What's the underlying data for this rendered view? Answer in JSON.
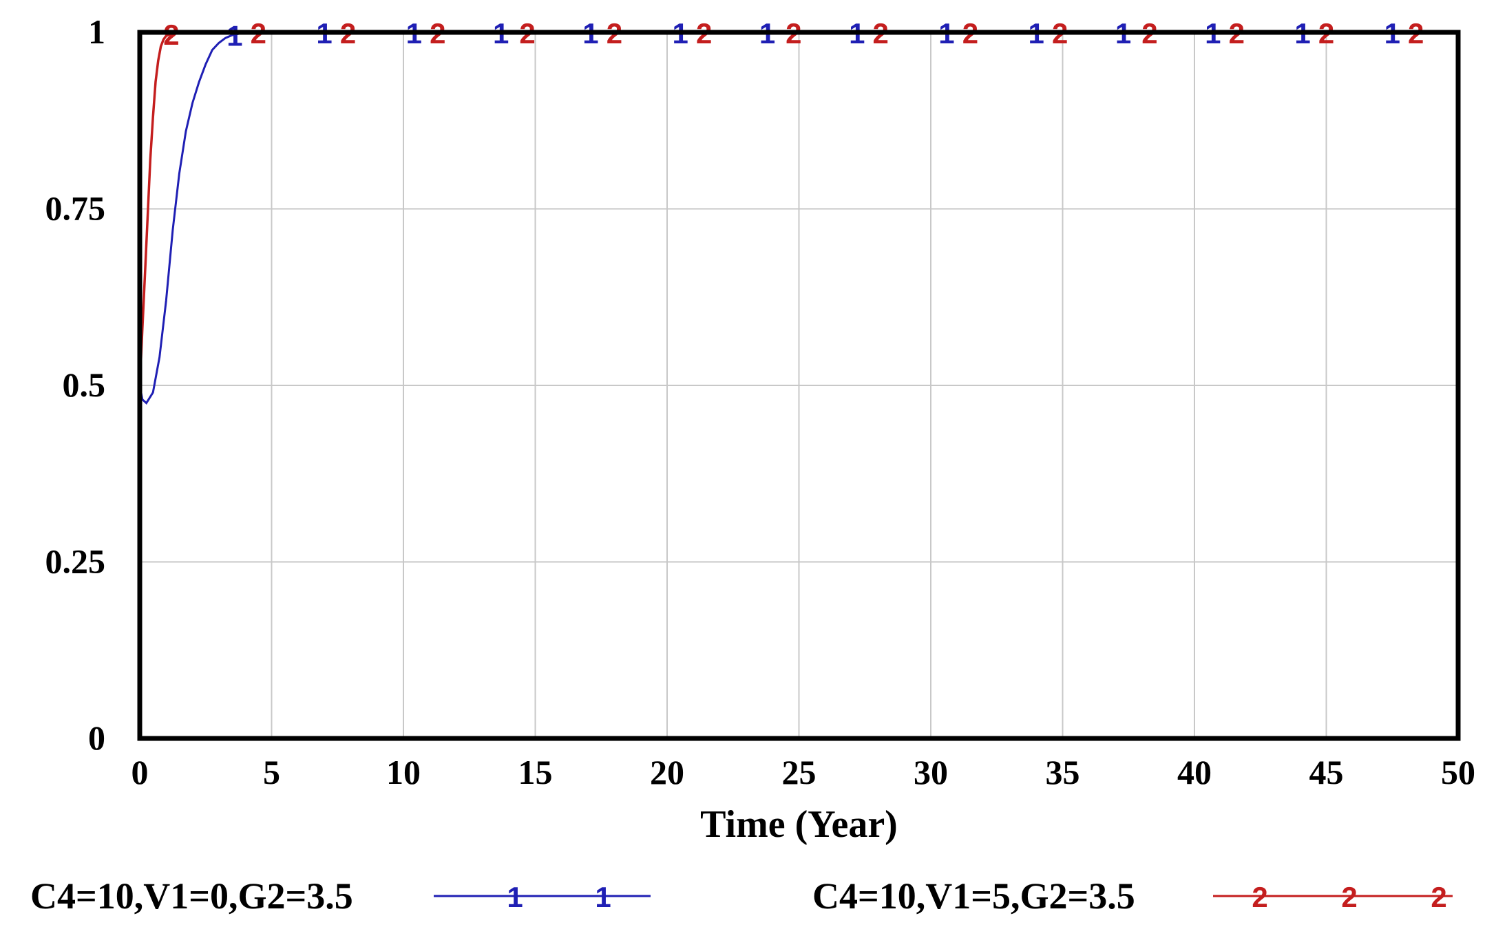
{
  "chart_data": {
    "type": "line",
    "xlabel": "Time (Year)",
    "ylabel": "",
    "xlim": [
      0,
      50
    ],
    "ylim": [
      0,
      1
    ],
    "x_ticks": [
      "0",
      "5",
      "10",
      "15",
      "20",
      "25",
      "30",
      "35",
      "40",
      "45",
      "50"
    ],
    "y_ticks": [
      "0",
      "0.25",
      "0.5",
      "0.75",
      "1"
    ],
    "grid": true,
    "legend_position": "bottom",
    "series": [
      {
        "name": "C4=10,V1=0,G2=3.5",
        "marker": "1",
        "color": "#1f1fb4",
        "x": [
          0,
          0.1,
          0.25,
          0.5,
          0.75,
          1.0,
          1.25,
          1.5,
          1.75,
          2.0,
          2.25,
          2.5,
          2.75,
          3.0,
          3.25,
          3.5,
          3.75,
          4.0,
          4.5,
          5,
          10,
          15,
          20,
          25,
          30,
          35,
          40,
          45,
          50
        ],
        "y": [
          0.5,
          0.48,
          0.475,
          0.49,
          0.54,
          0.62,
          0.72,
          0.8,
          0.86,
          0.9,
          0.93,
          0.955,
          0.975,
          0.985,
          0.992,
          0.996,
          0.998,
          1.0,
          1.0,
          1.0,
          1.0,
          1.0,
          1.0,
          1.0,
          1.0,
          1.0,
          1.0,
          1.0,
          1.0
        ]
      },
      {
        "name": "C4=10,V1=5,G2=3.5",
        "marker": "2",
        "color": "#c41e1e",
        "x": [
          0,
          0.1,
          0.2,
          0.3,
          0.4,
          0.5,
          0.6,
          0.7,
          0.8,
          0.9,
          1.0,
          1.2,
          1.5,
          2.0,
          3,
          5,
          10,
          15,
          20,
          25,
          30,
          35,
          40,
          45,
          50
        ],
        "y": [
          0.5,
          0.58,
          0.66,
          0.74,
          0.82,
          0.88,
          0.93,
          0.96,
          0.98,
          0.99,
          0.995,
          0.998,
          1.0,
          1.0,
          1.0,
          1.0,
          1.0,
          1.0,
          1.0,
          1.0,
          1.0,
          1.0,
          1.0,
          1.0,
          1.0
        ]
      }
    ]
  }
}
